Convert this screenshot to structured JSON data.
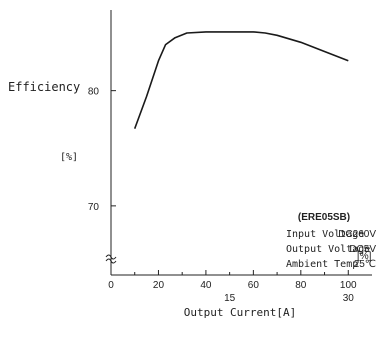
{
  "chart_data": {
    "type": "line",
    "ylabel": "Efficiency",
    "yunit": "[%]",
    "xlabel": "Output Current[A]",
    "x_unit": "[%]",
    "x": [
      10,
      15,
      20,
      23,
      27,
      32,
      40,
      50,
      60,
      65,
      70,
      80,
      90,
      100
    ],
    "series": [
      {
        "values": [
          76.7,
          79.5,
          82.6,
          84.0,
          84.6,
          85.0,
          85.1,
          85.1,
          85.1,
          85.0,
          84.8,
          84.2,
          83.4,
          82.6
        ]
      }
    ],
    "xlim": [
      0,
      110
    ],
    "ylim": [
      64,
      87
    ],
    "x_ticks": [
      {
        "v": 0,
        "label": "0"
      },
      {
        "v": 20,
        "label": "20"
      },
      {
        "v": 40,
        "label": "40"
      },
      {
        "v": 60,
        "label": "60"
      },
      {
        "v": 80,
        "label": "80"
      },
      {
        "v": 100,
        "label": "100"
      }
    ],
    "x_minor_ticks": [
      10,
      30,
      50,
      70,
      90
    ],
    "x_secondary_ticks": [
      {
        "v": 50,
        "label": "15"
      },
      {
        "v": 100,
        "label": "30"
      }
    ],
    "y_ticks": [
      {
        "v": 80,
        "label": "80"
      },
      {
        "v": 70,
        "label": "70"
      }
    ],
    "annotation": {
      "model": "(ERE05SB)",
      "rows": [
        {
          "label": "Input Voltage",
          "value": "DC260V"
        },
        {
          "label": "Output Voltage",
          "value": "DC5V"
        },
        {
          "label": "Ambient Temp",
          "value": "25℃"
        }
      ]
    },
    "grid": false,
    "line_color": "#1a1a1a"
  }
}
